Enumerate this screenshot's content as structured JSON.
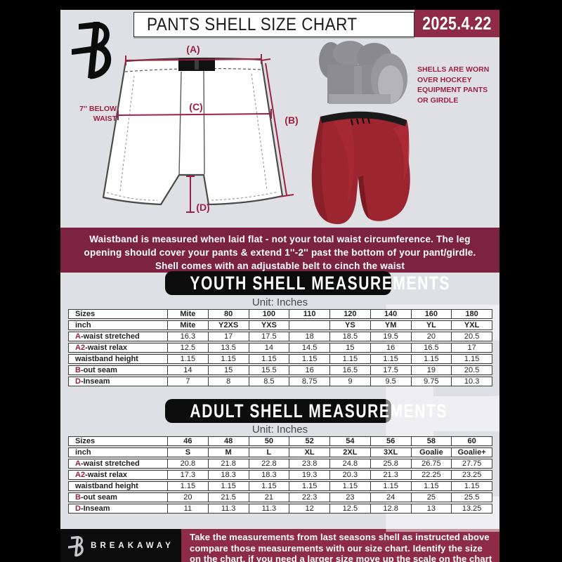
{
  "header": {
    "title": "PANTS SHELL SIZE CHART",
    "date": "2025.4.22"
  },
  "diagram": {
    "label_a": "(A)",
    "label_b": "(B)",
    "label_c": "(C)",
    "label_d": "(D)",
    "below_waist_note": "7'' BELOW\nWAIST",
    "shell_note": "SHELLS ARE WORN\nOVER HOCKEY\nEQUIPMENT PANTS\nOR GIRDLE"
  },
  "info_banner": {
    "text": "Waistband is measured when laid flat - not your total waist circumference. The leg\nopening should cover your pants & extend 1''-2'' past the bottom of your pant/girdle.\nShell comes with an adjustable belt to cinch the waist"
  },
  "youth_section": {
    "title": "YOUTH SHELL MEASUREMENTS",
    "unit_label": "Unit: Inches",
    "table": {
      "rows": [
        {
          "accent": "",
          "label": "Sizes",
          "bold": true,
          "values": [
            "Mite",
            "80",
            "100",
            "110",
            "120",
            "140",
            "160",
            "180"
          ]
        },
        {
          "accent": "",
          "label": "inch",
          "bold": true,
          "values": [
            "Mite",
            "Y2XS",
            "YXS",
            "",
            "YS",
            "YM",
            "YL",
            "YXL"
          ]
        },
        {
          "accent": "A",
          "label": "-waist stretched",
          "bold": false,
          "values": [
            "16.3",
            "17",
            "17.5",
            "18",
            "18.5",
            "19.5",
            "20",
            "20.5"
          ]
        },
        {
          "accent": "A2",
          "label": "-waist relax",
          "bold": false,
          "values": [
            "12.5",
            "13.5",
            "14",
            "14.5",
            "15",
            "16",
            "16.5",
            "17"
          ]
        },
        {
          "accent": "",
          "label": "waistband height",
          "bold": false,
          "values": [
            "1.15",
            "1.15",
            "1.15",
            "1.15",
            "1.15",
            "1.15",
            "1.15",
            "1.15"
          ]
        },
        {
          "accent": "B",
          "label": "-out seam",
          "bold": false,
          "values": [
            "14",
            "15",
            "15.5",
            "16",
            "16.5",
            "17.5",
            "19",
            "20.5"
          ]
        },
        {
          "accent": "D",
          "label": "-Inseam",
          "bold": false,
          "values": [
            "7",
            "8",
            "8.5",
            "8.75",
            "9",
            "9.5",
            "9.75",
            "10.3"
          ]
        }
      ]
    }
  },
  "adult_section": {
    "title": "ADULT SHELL MEASUREMENTS",
    "unit_label": "Unit: Inches",
    "table": {
      "rows": [
        {
          "accent": "",
          "label": "Sizes",
          "bold": true,
          "values": [
            "46",
            "48",
            "50",
            "52",
            "54",
            "56",
            "58",
            "60"
          ]
        },
        {
          "accent": "",
          "label": "inch",
          "bold": true,
          "values": [
            "S",
            "M",
            "L",
            "XL",
            "2XL",
            "3XL",
            "Goalie",
            "Goalie+"
          ]
        },
        {
          "accent": "A",
          "label": "-waist stretched",
          "bold": false,
          "values": [
            "20.8",
            "21.8",
            "22.8",
            "23.8",
            "24.8",
            "25.8",
            "26.75",
            "27.75"
          ]
        },
        {
          "accent": "A2",
          "label": "-waist relax",
          "bold": false,
          "values": [
            "17.3",
            "18.3",
            "18.3",
            "19.3",
            "20.3",
            "21.3",
            "22.25",
            "23.25"
          ]
        },
        {
          "accent": "",
          "label": "waistband height",
          "bold": false,
          "values": [
            "1.15",
            "1.15",
            "1.15",
            "1.15",
            "1.15",
            "1.15",
            "1.15",
            "1.15"
          ]
        },
        {
          "accent": "B",
          "label": "-out seam",
          "bold": false,
          "values": [
            "20",
            "21.5",
            "21",
            "22.3",
            "23",
            "24",
            "25",
            "25.5"
          ]
        },
        {
          "accent": "D",
          "label": "-Inseam",
          "bold": false,
          "values": [
            "11",
            "11.3",
            "11.3",
            "12",
            "12.5",
            "12.8",
            "13",
            "13.25"
          ]
        }
      ]
    }
  },
  "footer": {
    "brand": "BREAKAWAY",
    "text": "Take the measurements from last seasons shell as instructed above\ncompare those measurements  with our size chart. Identify the size\non the chart, if you need a larger size move up the scale on the chart"
  },
  "watermark_letter": "B",
  "colors": {
    "maroon_dark": "#7d2342",
    "maroon_bright": "#8d2b49",
    "accent_text": "#8e2144",
    "diagram_line": "#9e2145",
    "background": "#dfe0e4"
  }
}
